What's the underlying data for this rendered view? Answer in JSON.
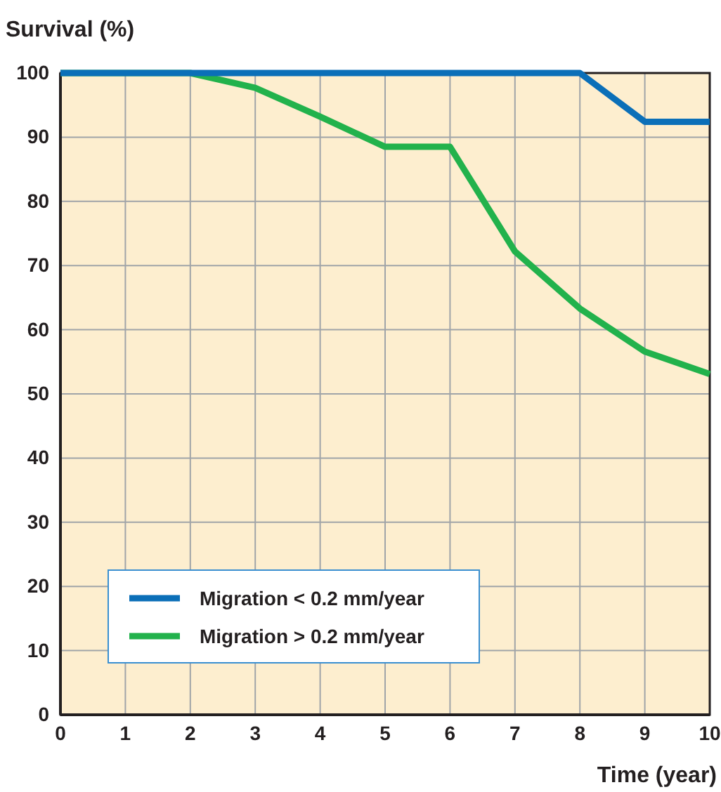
{
  "chart_data": {
    "type": "line",
    "ylabel": "Survival (%)",
    "xlabel": "Time (year)",
    "x": [
      0,
      1,
      2,
      3,
      4,
      5,
      6,
      7,
      8,
      9,
      10
    ],
    "series": [
      {
        "name": "Migration < 0.2 mm/year",
        "color": "#0b6fb8",
        "values": [
          100,
          100,
          100,
          100,
          100,
          100,
          100,
          100,
          100,
          92.4,
          92.4
        ]
      },
      {
        "name": "Migration > 0.2 mm/year",
        "color": "#22b24c",
        "values": [
          100,
          100,
          100,
          97.7,
          93.2,
          88.5,
          88.5,
          72.2,
          63.3,
          56.6,
          53.1
        ]
      }
    ],
    "xlim": [
      0,
      10
    ],
    "xticks": [
      0,
      1,
      2,
      3,
      4,
      5,
      6,
      7,
      8,
      9,
      10
    ],
    "ylim": [
      0,
      100
    ],
    "yticks": [
      0,
      10,
      20,
      30,
      40,
      50,
      60,
      70,
      80,
      90,
      100
    ],
    "grid": true,
    "legend": "bottom left",
    "marker": "none",
    "line_style": "solid"
  }
}
